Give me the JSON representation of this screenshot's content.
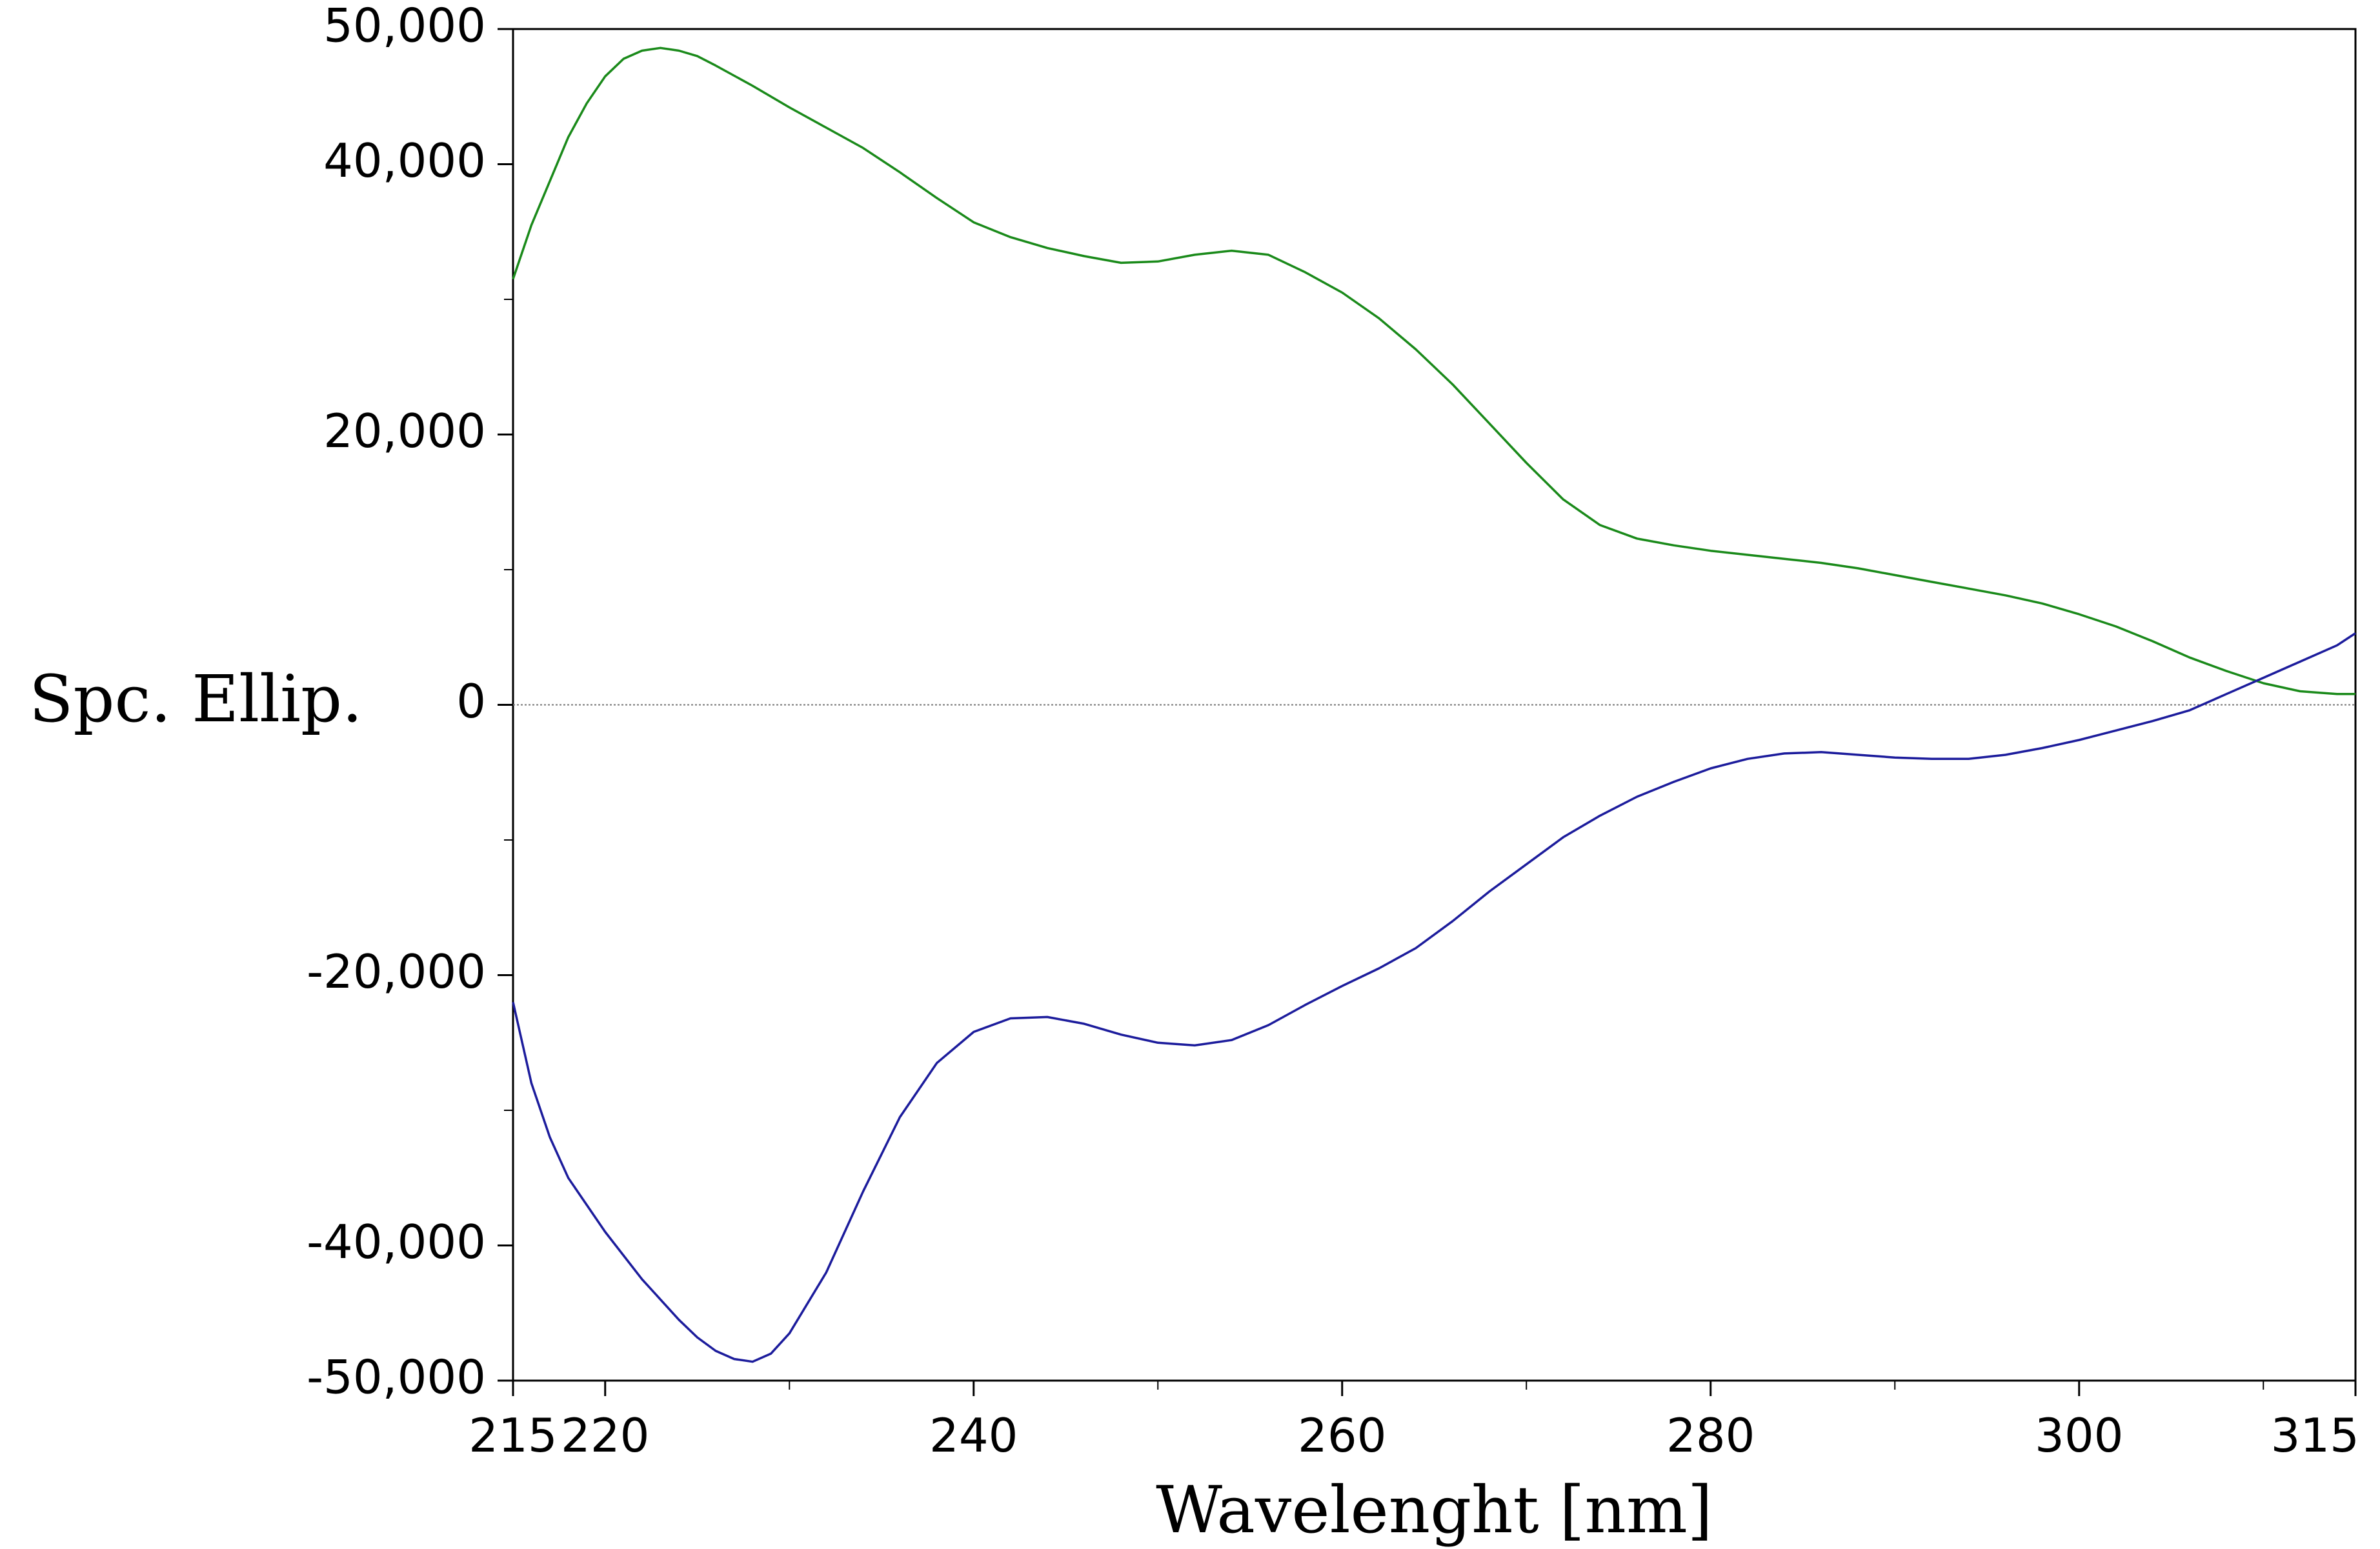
{
  "chart_data": {
    "type": "line",
    "title": "",
    "xlabel": "Wavelenght [nm]",
    "ylabel": "Spc. Ellip.",
    "xlim": [
      215,
      315
    ],
    "ylim": [
      -50000,
      50000
    ],
    "x_ticks": [
      215,
      220,
      240,
      260,
      280,
      300,
      315
    ],
    "x_tick_labels": [
      "215",
      "220",
      "240",
      "260",
      "280",
      "300",
      "315"
    ],
    "x_minor_ticks": [
      230,
      250,
      270,
      290,
      310
    ],
    "y_ticks": [
      50000,
      40000,
      20000,
      0,
      -20000,
      -40000,
      -50000
    ],
    "y_tick_labels": [
      "50,000",
      "40,000",
      "20,000",
      "0",
      "-20,000",
      "-40,000",
      "-50,000"
    ],
    "y_minor_ticks": [
      30000,
      10000,
      -10000,
      -30000
    ],
    "zero_line": true,
    "grid": false,
    "series": [
      {
        "name": "green",
        "color": "#1a8a1a",
        "x": [
          215,
          216,
          218,
          219,
          220,
          221,
          222,
          223,
          224,
          225,
          226,
          228,
          230,
          232,
          234,
          236,
          238,
          240,
          242,
          244,
          246,
          248,
          250,
          252,
          254,
          256,
          258,
          260,
          262,
          264,
          266,
          268,
          270,
          272,
          274,
          276,
          278,
          280,
          282,
          284,
          286,
          288,
          290,
          292,
          294,
          296,
          298,
          300,
          302,
          304,
          306,
          308,
          310,
          312,
          314,
          315
        ],
        "y": [
          31500,
          35500,
          42000,
          44500,
          46500,
          47800,
          48400,
          48600,
          48400,
          48000,
          47300,
          45800,
          44200,
          42700,
          41200,
          39400,
          37500,
          35700,
          34600,
          33800,
          33200,
          32700,
          32800,
          33300,
          33600,
          33300,
          32000,
          30500,
          28600,
          26300,
          23700,
          20800,
          17900,
          15200,
          13300,
          12300,
          11800,
          11400,
          11100,
          10800,
          10500,
          10100,
          9600,
          9100,
          8600,
          8100,
          7500,
          6700,
          5800,
          4700,
          3500,
          2500,
          1600,
          1000,
          800,
          800
        ]
      },
      {
        "name": "blue",
        "color": "#1c1c9c",
        "x": [
          215,
          216,
          217,
          218,
          220,
          222,
          224,
          225,
          226,
          227,
          228,
          229,
          230,
          232,
          234,
          236,
          238,
          240,
          242,
          244,
          246,
          248,
          250,
          252,
          254,
          256,
          258,
          260,
          262,
          264,
          266,
          268,
          270,
          272,
          274,
          276,
          278,
          280,
          282,
          284,
          286,
          288,
          290,
          292,
          294,
          296,
          298,
          300,
          302,
          304,
          306,
          308,
          310,
          312,
          314,
          315
        ],
        "y": [
          -22000,
          -28000,
          -32000,
          -35000,
          -39000,
          -42500,
          -45500,
          -46800,
          -47800,
          -48400,
          -48600,
          -48000,
          -46500,
          -42000,
          -36000,
          -30500,
          -26500,
          -24200,
          -23200,
          -23100,
          -23600,
          -24400,
          -25000,
          -25200,
          -24800,
          -23700,
          -22200,
          -20800,
          -19500,
          -18000,
          -16000,
          -13800,
          -11800,
          -9800,
          -8200,
          -6800,
          -5700,
          -4700,
          -4000,
          -3600,
          -3500,
          -3700,
          -3900,
          -4000,
          -4000,
          -3700,
          -3200,
          -2600,
          -1900,
          -1200,
          -400,
          800,
          2000,
          3200,
          4400,
          5300
        ]
      }
    ]
  }
}
